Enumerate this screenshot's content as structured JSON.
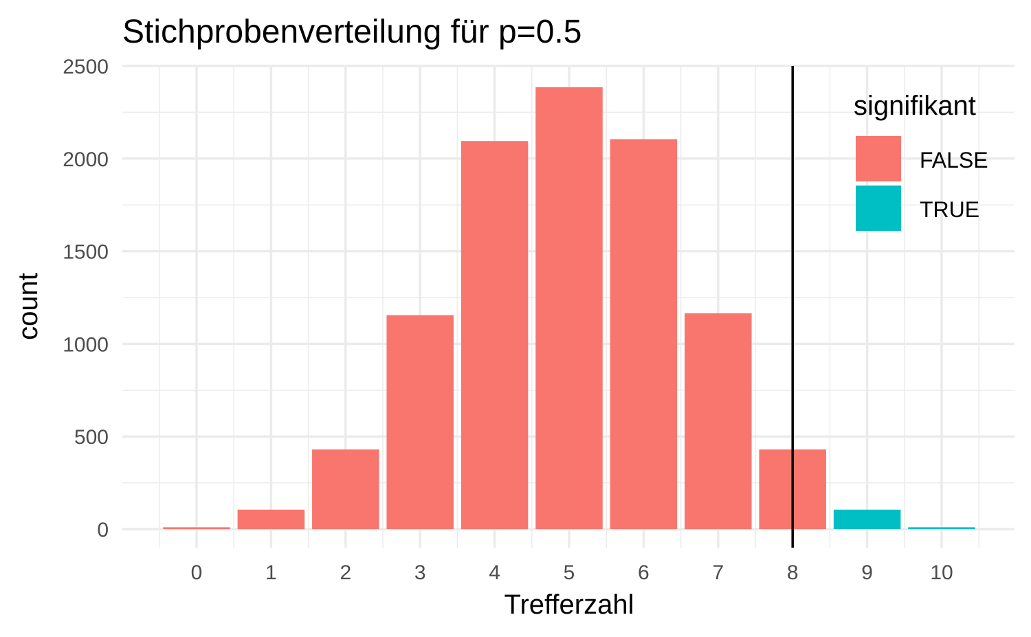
{
  "chart_data": {
    "type": "bar",
    "title": "Stichprobenverteilung für p=0.5",
    "xlabel": "Trefferzahl",
    "ylabel": "count",
    "categories": [
      "0",
      "1",
      "2",
      "3",
      "4",
      "5",
      "6",
      "7",
      "8",
      "9",
      "10"
    ],
    "values": [
      10,
      105,
      430,
      1155,
      2095,
      2385,
      2105,
      1165,
      430,
      105,
      10
    ],
    "significant": [
      false,
      false,
      false,
      false,
      false,
      false,
      false,
      false,
      false,
      true,
      true
    ],
    "ylim": [
      -100,
      2500
    ],
    "yticks": [
      0,
      500,
      1000,
      1500,
      2000,
      2500
    ],
    "vline_x": 8,
    "grid": true,
    "legend": {
      "title": "signifikant",
      "position": "top-right",
      "entries": [
        {
          "label": "FALSE",
          "color": "#F8766D"
        },
        {
          "label": "TRUE",
          "color": "#00BFC4"
        }
      ]
    }
  }
}
